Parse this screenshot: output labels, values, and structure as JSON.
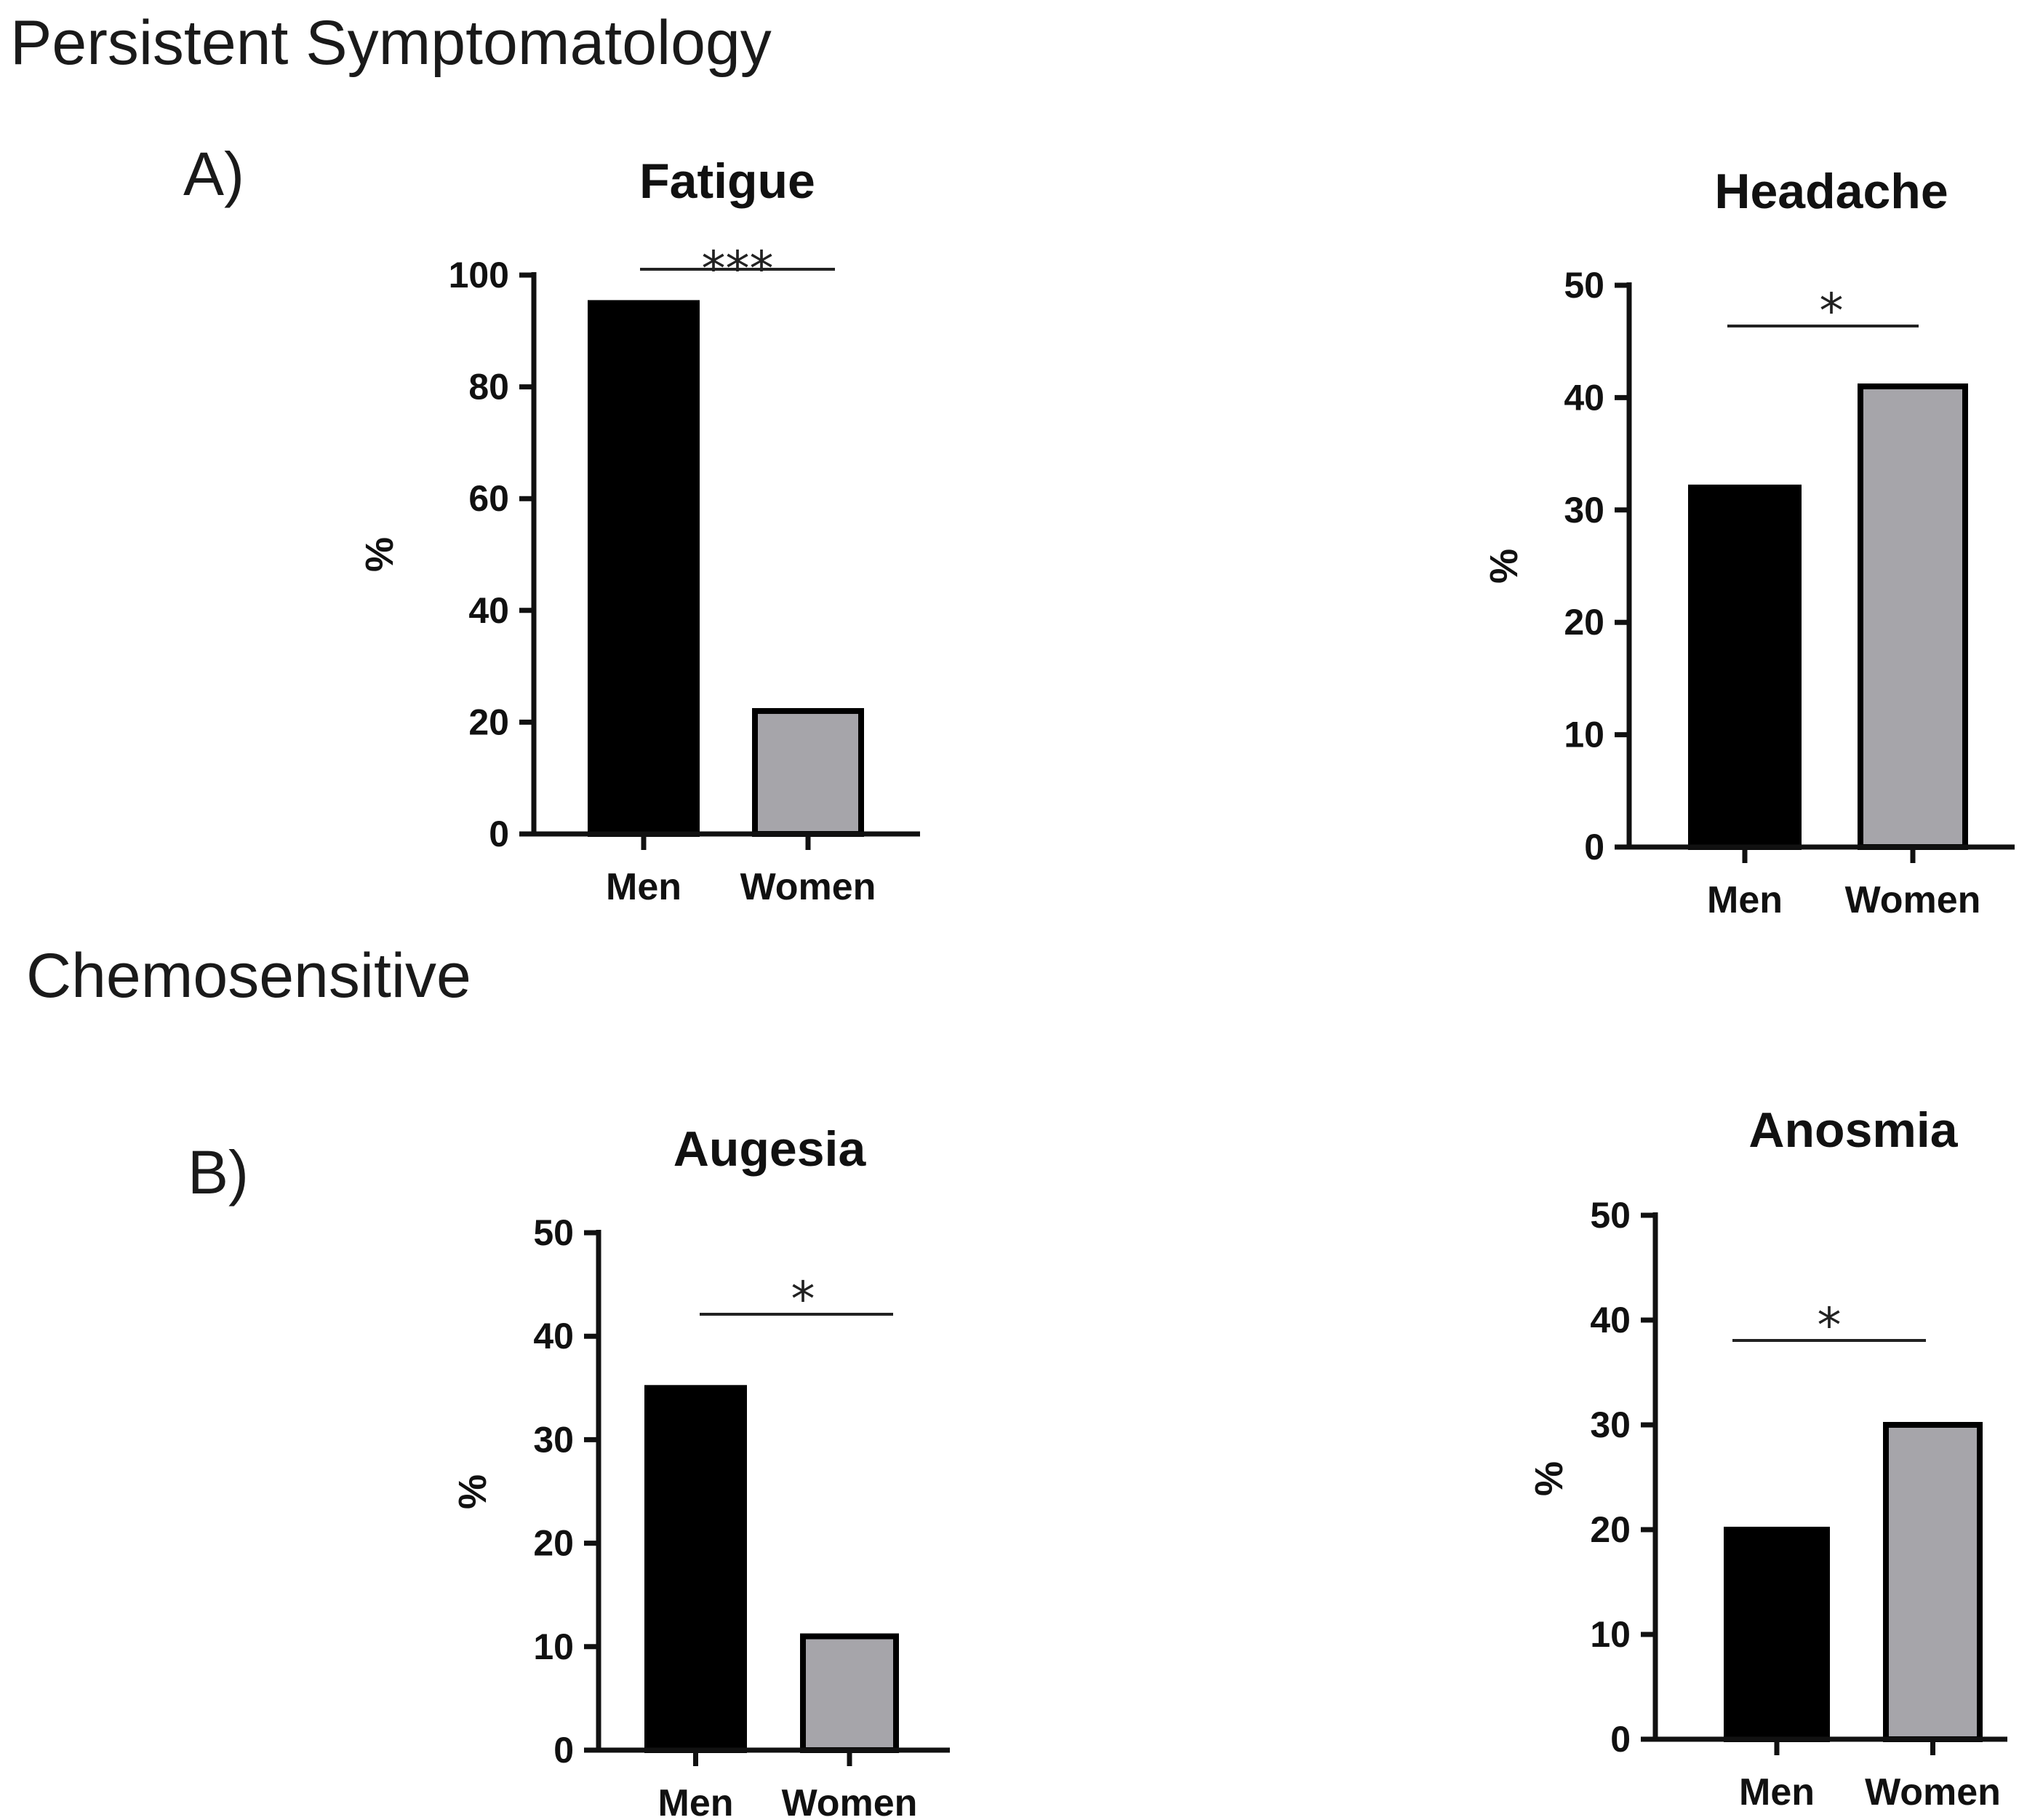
{
  "sections": {
    "persistent_title": "Persistent Symptomatology",
    "chemosensitive_title": "Chemosensitive",
    "panel_a": "A)",
    "panel_b": "B)"
  },
  "colors": {
    "men": "#000000",
    "women": "#a6a5aa",
    "outline": "#000000"
  },
  "chart_data": [
    {
      "type": "bar",
      "title": "Fatigue",
      "categories": [
        "Men",
        "Women"
      ],
      "values": [
        95,
        22
      ],
      "ylabel": "%",
      "xlabel": "",
      "ylim": [
        0,
        100
      ],
      "yticks": [
        0,
        20,
        40,
        60,
        80,
        100
      ],
      "significance": "***"
    },
    {
      "type": "bar",
      "title": "Headache",
      "categories": [
        "Men",
        "Women"
      ],
      "values": [
        32,
        41
      ],
      "ylabel": "%",
      "xlabel": "",
      "ylim": [
        0,
        50
      ],
      "yticks": [
        0,
        10,
        20,
        30,
        40,
        50
      ],
      "significance": "*"
    },
    {
      "type": "bar",
      "title": "Augesia",
      "categories": [
        "Men",
        "Women"
      ],
      "values": [
        35,
        11
      ],
      "ylabel": "%",
      "xlabel": "",
      "ylim": [
        0,
        50
      ],
      "yticks": [
        0,
        10,
        20,
        30,
        40,
        50
      ],
      "significance": "*"
    },
    {
      "type": "bar",
      "title": "Anosmia",
      "categories": [
        "Men",
        "Women"
      ],
      "values": [
        20,
        30
      ],
      "ylabel": "%",
      "xlabel": "",
      "ylim": [
        0,
        50
      ],
      "yticks": [
        0,
        10,
        20,
        30,
        40,
        50
      ],
      "significance": "*"
    }
  ]
}
